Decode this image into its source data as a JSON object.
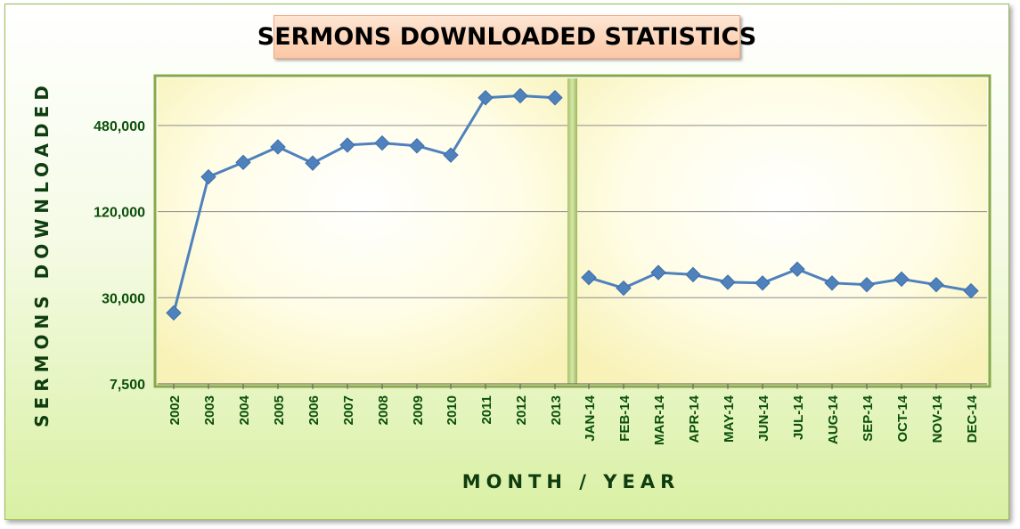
{
  "chart_data": {
    "type": "line",
    "title": "SERMONS DOWNLOADED STATISTICS",
    "xlabel": "MONTH / YEAR",
    "ylabel": "SERMONS DOWNLOADED",
    "yscale": "log",
    "ylim": [
      7500,
      900000
    ],
    "yticks": [
      7500,
      30000,
      120000,
      480000
    ],
    "ytick_labels": [
      "7,500",
      "30,000",
      "120,000",
      "480,000"
    ],
    "grid": true,
    "legend": "none",
    "colors": {
      "line": "#4f81bd",
      "plot_fill": "#fffcd8",
      "tick_text": "#0b4f0b",
      "frame_border": "#9bbb59"
    },
    "panels": [
      {
        "categories": [
          "2002",
          "2003",
          "2004",
          "2005",
          "2006",
          "2007",
          "2008",
          "2009",
          "2010",
          "2011",
          "2012",
          "2013"
        ],
        "values": [
          23500,
          210000,
          265000,
          340000,
          262000,
          350000,
          362000,
          346000,
          298000,
          750000,
          775000,
          750000
        ]
      },
      {
        "categories": [
          "JAN-14",
          "FEB-14",
          "MAR-14",
          "APR-14",
          "MAY-14",
          "JUN-14",
          "JUL-14",
          "AUG-14",
          "SEP-14",
          "OCT-14",
          "NOV-14",
          "DEC-14"
        ],
        "values": [
          41500,
          35000,
          45000,
          43500,
          38500,
          38000,
          47500,
          38000,
          37000,
          40500,
          37000,
          33500
        ]
      }
    ]
  }
}
